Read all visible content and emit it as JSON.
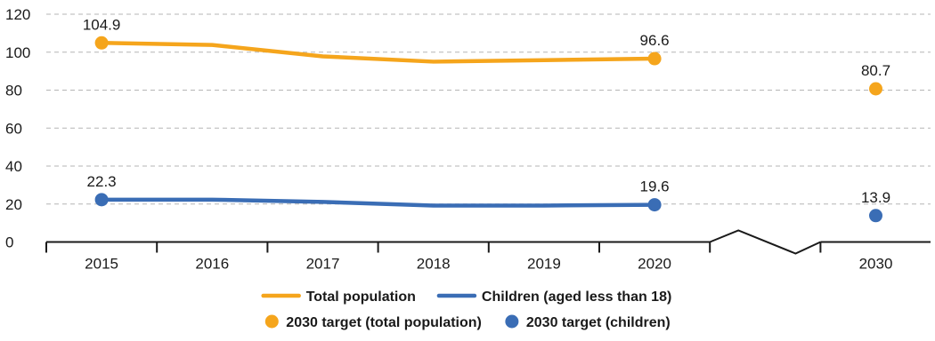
{
  "chart_data": {
    "type": "line",
    "categories": [
      "2015",
      "2016",
      "2017",
      "2018",
      "2019",
      "2020",
      "2030"
    ],
    "y_ticks": [
      "0",
      "20",
      "40",
      "60",
      "80",
      "100",
      "120"
    ],
    "ylim": [
      0,
      120
    ],
    "grid": true,
    "legend_position": "bottom",
    "axis_break": "between 2020 and 2030",
    "series": [
      {
        "name": "Total population",
        "kind": "line",
        "color": "#F5A51C",
        "x": [
          "2015",
          "2016",
          "2017",
          "2018",
          "2019",
          "2020"
        ],
        "values": [
          104.9,
          103.8,
          97.8,
          95.0,
          95.8,
          96.6
        ],
        "labels": [
          {
            "x": "2015",
            "text": "104.9"
          },
          {
            "x": "2020",
            "text": "96.6"
          }
        ]
      },
      {
        "name": "Children (aged less than 18)",
        "kind": "line",
        "color": "#3A6DB5",
        "x": [
          "2015",
          "2016",
          "2017",
          "2018",
          "2019",
          "2020"
        ],
        "values": [
          22.3,
          22.3,
          21.1,
          19.2,
          19.2,
          19.6
        ],
        "labels": [
          {
            "x": "2015",
            "text": "22.3"
          },
          {
            "x": "2020",
            "text": "19.6"
          }
        ]
      },
      {
        "name": "2030 target (total population)",
        "kind": "point",
        "color": "#F5A51C",
        "x": [
          "2030"
        ],
        "values": [
          80.7
        ],
        "labels": [
          {
            "x": "2030",
            "text": "80.7"
          }
        ]
      },
      {
        "name": "2030 target (children)",
        "kind": "point",
        "color": "#3A6DB5",
        "x": [
          "2030"
        ],
        "values": [
          13.9
        ],
        "labels": [
          {
            "x": "2030",
            "text": "13.9"
          }
        ]
      }
    ]
  }
}
